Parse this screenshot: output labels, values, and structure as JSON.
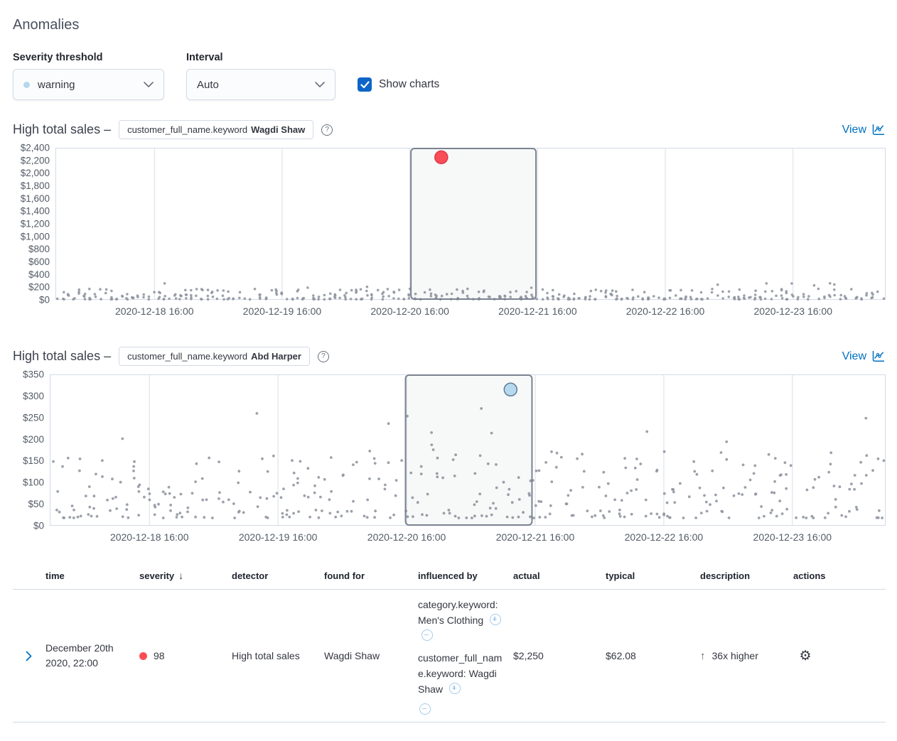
{
  "page": {
    "title": "Anomalies"
  },
  "icons": {
    "question": "?",
    "sort_desc": "↓",
    "direction_up": "↑",
    "gear": "⚙"
  },
  "colors": {
    "primary_blue": "#0d65c8",
    "link_blue": "#0071c2",
    "critical_red": "#fb4d57",
    "warning_dot_blue": "#b7d6ee",
    "scatter_gray": "#8e949f"
  },
  "controls": {
    "severity_threshold": {
      "label": "Severity threshold",
      "selected": "warning",
      "dot_color": "#b7d6ee"
    },
    "interval": {
      "label": "Interval",
      "selected": "Auto"
    },
    "show_charts": {
      "label": "Show charts",
      "checked": true,
      "color": "#0d65c8"
    }
  },
  "chart_data": [
    {
      "type": "scatter",
      "title": "High total sales –",
      "entity_field": "customer_full_name.keyword",
      "entity_value": "Wagdi Shaw",
      "view_label": "View",
      "ylim": [
        0,
        2400
      ],
      "yticks": [
        {
          "v": 2400,
          "label": "$2,400"
        },
        {
          "v": 2200,
          "label": "$2,200"
        },
        {
          "v": 2000,
          "label": "$2,000"
        },
        {
          "v": 1800,
          "label": "$1,800"
        },
        {
          "v": 1600,
          "label": "$1,600"
        },
        {
          "v": 1400,
          "label": "$1,400"
        },
        {
          "v": 1200,
          "label": "$1,200"
        },
        {
          "v": 1000,
          "label": "$1,000"
        },
        {
          "v": 800,
          "label": "$800"
        },
        {
          "v": 600,
          "label": "$600"
        },
        {
          "v": 400,
          "label": "$400"
        },
        {
          "v": 200,
          "label": "$200"
        },
        {
          "v": 0,
          "label": "$0"
        }
      ],
      "domain_hours": 156,
      "xticks": [
        {
          "hour": 18.6,
          "label": "2020-12-18 16:00"
        },
        {
          "hour": 42.6,
          "label": "2020-12-19 16:00"
        },
        {
          "hour": 66.6,
          "label": "2020-12-20 16:00"
        },
        {
          "hour": 90.6,
          "label": "2020-12-21 16:00"
        },
        {
          "hour": 114.6,
          "label": "2020-12-22 16:00"
        },
        {
          "hour": 138.6,
          "label": "2020-12-23 16:00"
        }
      ],
      "grid": true,
      "selection_window": {
        "from_hour": 66.8,
        "to_hour": 90.3
      },
      "anomaly": {
        "hour": 72.5,
        "value": 2250,
        "severity_color": "#fb4d57",
        "stroke": "#d93b45",
        "radius": 9
      },
      "scatter_cloud": {
        "seed": 11,
        "max_per_hour": 4,
        "base": 8,
        "pow": 2.3,
        "spread": 165,
        "outlier_prob": 0.02,
        "outlier_base": 150,
        "outlier_spread": 110,
        "jitter": 2.5,
        "dot_r": 1.8,
        "dot_color": "#8e949f"
      }
    },
    {
      "type": "scatter",
      "title": "High total sales –",
      "entity_field": "customer_full_name.keyword",
      "entity_value": "Abd Harper",
      "view_label": "View",
      "ylim": [
        0,
        350
      ],
      "yticks": [
        {
          "v": 350,
          "label": "$350"
        },
        {
          "v": 300,
          "label": "$300"
        },
        {
          "v": 250,
          "label": "$250"
        },
        {
          "v": 200,
          "label": "$200"
        },
        {
          "v": 150,
          "label": "$150"
        },
        {
          "v": 100,
          "label": "$100"
        },
        {
          "v": 50,
          "label": "$50"
        },
        {
          "v": 0,
          "label": "$0"
        }
      ],
      "domain_hours": 156,
      "xticks": [
        {
          "hour": 18.6,
          "label": "2020-12-18 16:00"
        },
        {
          "hour": 42.6,
          "label": "2020-12-19 16:00"
        },
        {
          "hour": 66.6,
          "label": "2020-12-20 16:00"
        },
        {
          "hour": 90.6,
          "label": "2020-12-21 16:00"
        },
        {
          "hour": 114.6,
          "label": "2020-12-22 16:00"
        },
        {
          "hour": 138.6,
          "label": "2020-12-23 16:00"
        }
      ],
      "grid": true,
      "selection_window": {
        "from_hour": 66.4,
        "to_hour": 90.0
      },
      "anomaly": {
        "hour": 86,
        "value": 315,
        "severity_color": "#b6d9f0",
        "stroke": "#5f7d95",
        "radius": 9
      },
      "scatter_cloud": {
        "seed": 29,
        "max_per_hour": 4,
        "base": 18,
        "pow": 1.8,
        "spread": 155,
        "outlier_prob": 0.025,
        "outlier_base": 170,
        "outlier_spread": 110,
        "jitter": 5,
        "dot_r": 1.9,
        "dot_color": "#8e949f"
      }
    }
  ],
  "table": {
    "headers": {
      "time": "time",
      "severity": "severity",
      "detector": "detector",
      "found_for": "found for",
      "influenced_by": "influenced by",
      "actual": "actual",
      "typical": "typical",
      "description": "description",
      "actions": "actions"
    },
    "rows": [
      {
        "time": "December 20th 2020, 22:00",
        "severity_score": "98",
        "severity_color": "#fb4d57",
        "detector": "High total sales",
        "found_for": "Wagdi Shaw",
        "influenced_by": [
          {
            "text": "category.keyword: Men's Clothing"
          },
          {
            "text": "customer_full_name.keyword: Wagdi Shaw"
          }
        ],
        "actual": "$2,250",
        "typical": "$62.08",
        "description": "36x higher"
      }
    ]
  }
}
